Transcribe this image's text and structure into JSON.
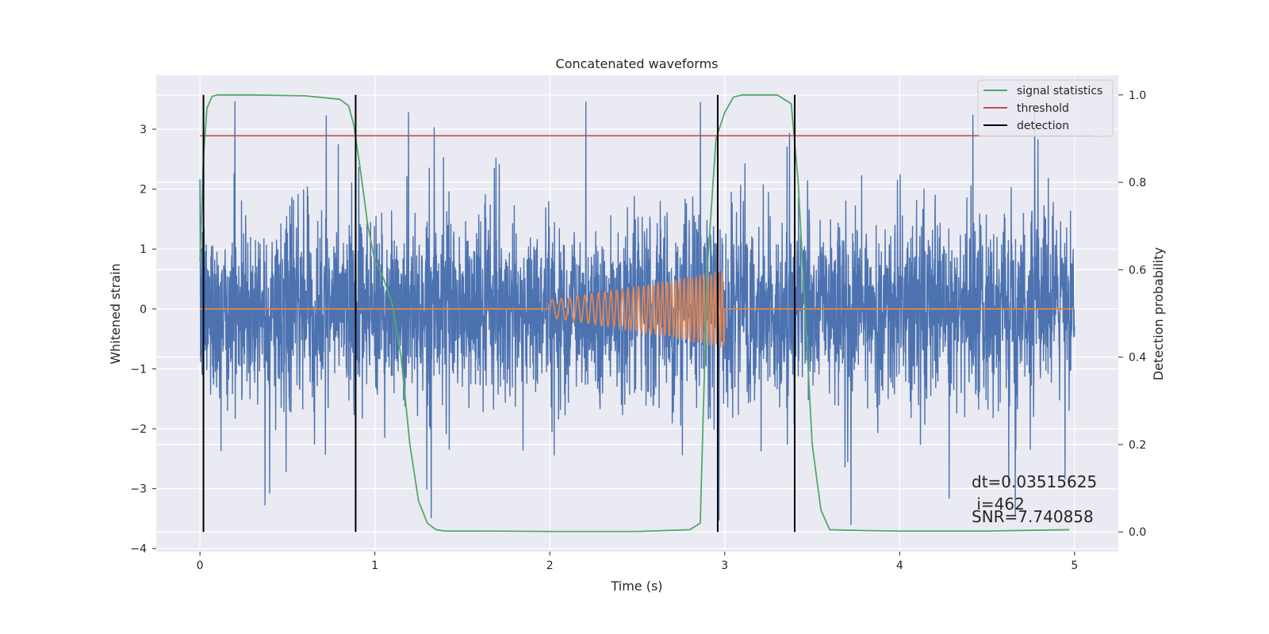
{
  "chart_data": {
    "type": "line",
    "title": "Concatenated waveforms",
    "xlabel": "Time (s)",
    "ylabel": "Whitened strain",
    "y2label": "Detection probability",
    "xlim": [
      -0.25,
      5.25
    ],
    "ylim": [
      -4.05,
      3.9
    ],
    "y2lim": [
      -0.045,
      1.045
    ],
    "xticks": [
      0,
      1,
      2,
      3,
      4,
      5
    ],
    "xtick_labels": [
      "0",
      "1",
      "2",
      "3",
      "4",
      "5"
    ],
    "yticks": [
      -4,
      -3,
      -2,
      -1,
      0,
      1,
      2,
      3
    ],
    "ytick_labels": [
      "−4",
      "−3",
      "−2",
      "−1",
      "0",
      "1",
      "2",
      "3"
    ],
    "y2ticks": [
      0.0,
      0.2,
      0.4,
      0.6,
      0.8,
      1.0
    ],
    "y2tick_labels": [
      "0.0",
      "0.2",
      "0.4",
      "0.6",
      "0.8",
      "1.0"
    ],
    "grid": true,
    "legend_position": "top-right",
    "legend": [
      {
        "label": "signal statistics",
        "color": "#55a868"
      },
      {
        "label": "threshold",
        "color": "#c44e52"
      },
      {
        "label": "detection",
        "color": "#000000"
      }
    ],
    "series": [
      {
        "name": "",
        "kind": "whitened noise strain",
        "axis": "left",
        "color": "#4c72b0",
        "x_range": [
          0,
          5
        ],
        "typical_envelope": [
          -0.8,
          0.7
        ],
        "peak_max": 3.6,
        "peak_min": -3.75
      },
      {
        "name": "",
        "kind": "injected chirp template",
        "axis": "left",
        "color": "#dd8452",
        "x_range": [
          0,
          5
        ],
        "chirp_start": 2.0,
        "chirp_end": 3.0,
        "chirp_amplitude_start": 0.15,
        "chirp_amplitude_end": 0.65
      },
      {
        "name": "signal statistics",
        "axis": "right",
        "color": "#55a868",
        "x": [
          0.0,
          0.02,
          0.04,
          0.07,
          0.1,
          0.3,
          0.6,
          0.8,
          0.85,
          0.88,
          0.92,
          0.96,
          1.0,
          1.05,
          1.1,
          1.15,
          1.2,
          1.25,
          1.3,
          1.35,
          1.4,
          1.6,
          2.0,
          2.5,
          2.8,
          2.86,
          2.9,
          2.95,
          3.0,
          3.05,
          3.1,
          3.3,
          3.38,
          3.42,
          3.46,
          3.5,
          3.55,
          3.6,
          3.8,
          4.0,
          4.5,
          4.97
        ],
        "y": [
          0.62,
          0.86,
          0.97,
          0.997,
          1.0,
          1.0,
          0.998,
          0.99,
          0.975,
          0.93,
          0.82,
          0.7,
          0.62,
          0.58,
          0.52,
          0.4,
          0.2,
          0.07,
          0.02,
          0.005,
          0.002,
          0.002,
          0.001,
          0.001,
          0.005,
          0.02,
          0.6,
          0.9,
          0.96,
          0.995,
          1.0,
          1.0,
          0.98,
          0.8,
          0.5,
          0.2,
          0.05,
          0.005,
          0.003,
          0.002,
          0.002,
          0.005
        ]
      },
      {
        "name": "threshold",
        "axis": "left",
        "color": "#c44e52",
        "x": [
          0,
          5.1
        ],
        "y": [
          2.89,
          2.89
        ]
      },
      {
        "name": "detection",
        "axis": "right",
        "color": "#000000",
        "x": [
          0.02,
          0.89,
          2.96,
          3.4
        ],
        "y_range": [
          0,
          1
        ]
      }
    ],
    "annotations": [
      "dt=0.03515625",
      " i=462",
      "SNR=7.740858"
    ]
  }
}
